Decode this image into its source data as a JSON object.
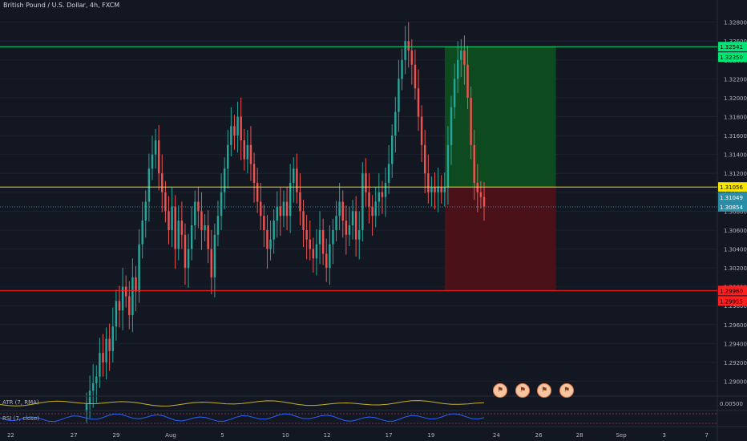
{
  "header": {
    "title": "British Pound / U.S. Dollar, 4h, FXCM"
  },
  "indicators": {
    "atr_label": "ATR (7, RMA)",
    "rsi_label": "RSI (7, close)",
    "atr_value_label": "0.00500"
  },
  "price_axis": {
    "ticks": [
      "1.32800",
      "1.32600",
      "1.32400",
      "1.32200",
      "1.32000",
      "1.31800",
      "1.31600",
      "1.31400",
      "1.31200",
      "1.31000",
      "1.30800",
      "1.30600",
      "1.30400",
      "1.30200",
      "1.30000",
      "1.29800",
      "1.29600",
      "1.29400",
      "1.29200",
      "1.29000"
    ],
    "tick_values": [
      1.328,
      1.326,
      1.324,
      1.322,
      1.32,
      1.318,
      1.316,
      1.314,
      1.312,
      1.31,
      1.308,
      1.306,
      1.304,
      1.302,
      1.3,
      1.298,
      1.296,
      1.294,
      1.292,
      1.29
    ],
    "ylim": [
      1.2886,
      1.3295
    ]
  },
  "time_axis": {
    "labels": [
      "22",
      "27",
      "29",
      "Aug",
      "5",
      "10",
      "12",
      "17",
      "19",
      "24",
      "26",
      "28",
      "Sep",
      "3",
      "7"
    ],
    "fracs": [
      0.015,
      0.103,
      0.162,
      0.238,
      0.31,
      0.398,
      0.456,
      0.542,
      0.601,
      0.692,
      0.751,
      0.808,
      0.866,
      0.926,
      0.985
    ]
  },
  "markers": {
    "target_line": {
      "price": 1.32541,
      "label": "1.32541",
      "label2": "1.32350",
      "color": "#00e676"
    },
    "entry_line": {
      "price": 1.31056,
      "label": "1.31056",
      "color": "#f7e600"
    },
    "stop_line": {
      "price": 1.2996,
      "label": "1.29960",
      "label2": "1.29955",
      "color": "#ff1f1f"
    },
    "last_price": {
      "price": 1.31049,
      "label": "1.31049",
      "label2": "1.30854",
      "color": "#2b8ea8"
    }
  },
  "position": {
    "start_frac": 0.62,
    "end_frac": 0.775,
    "top": 1.32541,
    "entry": 1.31056,
    "stop": 1.2996
  },
  "events_count": 4,
  "chart_data": {
    "type": "candlestick",
    "title": "British Pound / U.S. Dollar, 4h, FXCM",
    "closes": [
      1.2876,
      1.289,
      1.2898,
      1.2905,
      1.293,
      1.292,
      1.2945,
      1.2932,
      1.2958,
      1.2985,
      1.2975,
      1.3,
      1.299,
      1.297,
      1.301,
      1.2995,
      1.3045,
      1.307,
      1.309,
      1.3125,
      1.314,
      1.3155,
      1.312,
      1.31,
      1.308,
      1.306,
      1.3085,
      1.304,
      1.307,
      1.3055,
      1.302,
      1.304,
      1.3065,
      1.309,
      1.308,
      1.306,
      1.3065,
      1.304,
      1.301,
      1.3055,
      1.3075,
      1.31,
      1.3125,
      1.315,
      1.317,
      1.316,
      1.318,
      1.3155,
      1.3135,
      1.315,
      1.313,
      1.311,
      1.309,
      1.3075,
      1.306,
      1.304,
      1.305,
      1.307,
      1.3085,
      1.3075,
      1.309,
      1.3075,
      1.311,
      1.3125,
      1.31,
      1.308,
      1.306,
      1.305,
      1.304,
      1.303,
      1.3045,
      1.306,
      1.3035,
      1.302,
      1.3045,
      1.306,
      1.3075,
      1.309,
      1.307,
      1.3055,
      1.3065,
      1.308,
      1.305,
      1.306,
      1.312,
      1.31,
      1.3085,
      1.3075,
      1.309,
      1.31,
      1.3095,
      1.311,
      1.313,
      1.316,
      1.3185,
      1.322,
      1.324,
      1.326,
      1.325,
      1.3235,
      1.321,
      1.318,
      1.315,
      1.312,
      1.31,
      1.3105,
      1.31,
      1.3106,
      1.31,
      1.3105,
      1.315,
      1.319,
      1.322,
      1.324,
      1.325,
      1.3235,
      1.32,
      1.315,
      1.311,
      1.31,
      1.3095,
      1.3085
    ]
  }
}
